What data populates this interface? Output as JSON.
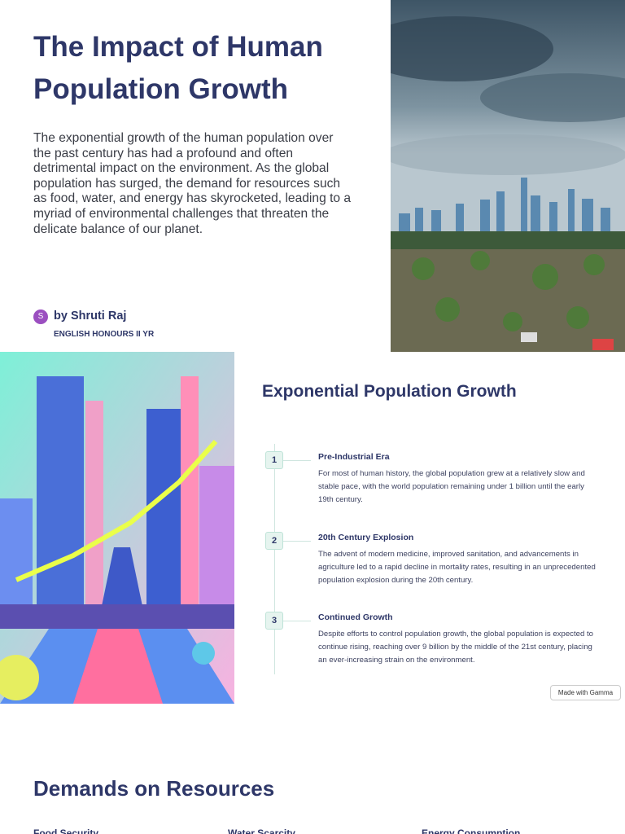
{
  "header": {
    "title": "The Impact of Human Population Growth",
    "intro": "The exponential growth of the human population over the past century has had a profound and often detrimental impact on the environment. As the global population has surged, the demand for resources such as food, water, and energy has skyrocketed, leading to a myriad of environmental challenges that threaten the delicate balance of our planet.",
    "author": {
      "initial": "S",
      "name": "by Shruti Raj",
      "role": "ENGLISH HONOURS II YR"
    }
  },
  "timeline": {
    "title": "Exponential Population Growth",
    "steps": [
      {
        "number": 1,
        "title": "Pre-Industrial Era",
        "text": "For most of human history, the global population grew at a relatively slow and stable pace, with the world population remaining under 1 billion until the early 19th century."
      },
      {
        "number": 2,
        "title": "20th Century Explosion",
        "text": "The advent of modern medicine, improved sanitation, and advancements in agriculture led to a rapid decline in mortality rates, resulting in an unprecedented population explosion during the 20th century."
      },
      {
        "number": 3,
        "title": "Continued Growth",
        "text": "Despite efforts to control population growth, the global population is expected to continue rising, reaching over 9 billion by the middle of the 21st century, placing an ever-increasing strain on the environment."
      }
    ]
  },
  "badge": "Made with Gamma",
  "resources": {
    "title": "Demands on Resources",
    "columns": [
      "Food Security",
      "Water Scarcity",
      "Energy Consumption"
    ]
  }
}
